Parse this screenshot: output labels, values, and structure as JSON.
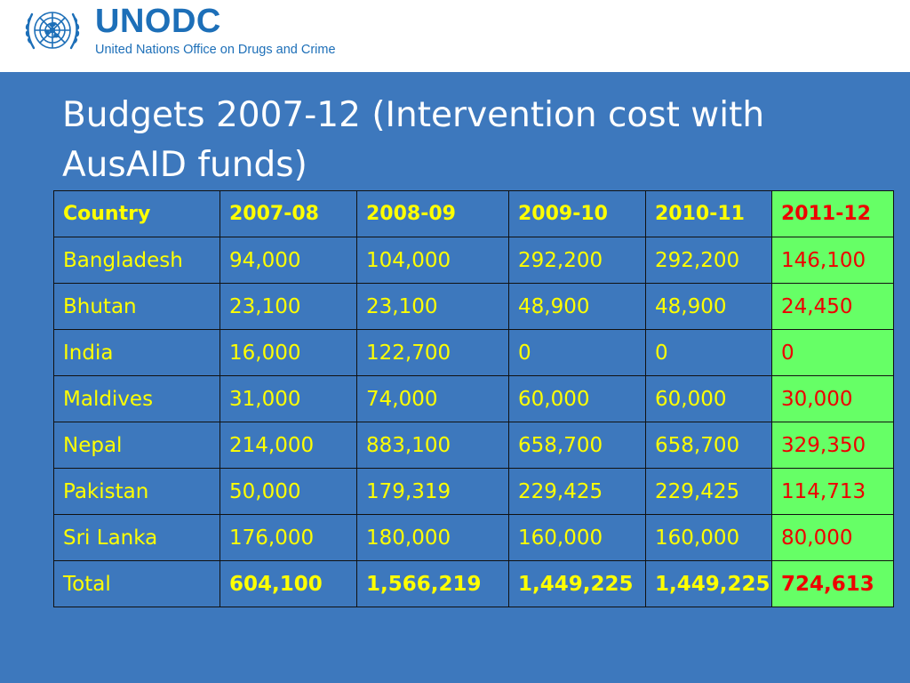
{
  "header": {
    "logo_word": "UNODC",
    "logo_sub": "United Nations Office on Drugs and Crime",
    "brand_color": "#1d6fb8"
  },
  "slide": {
    "title_line1": "Budgets 2007-12 (Intervention cost with",
    "title_line2": "AusAID funds)",
    "background": "#3d78bd",
    "highlight_bg": "#66ff66",
    "highlight_text": "#ee0000",
    "text_color": "#ffff00"
  },
  "table": {
    "columns": [
      "Country",
      "2007-08",
      "2008-09",
      "2009-10",
      "2010-11",
      "2011-12"
    ],
    "rows": [
      [
        "Bangladesh",
        "94,000",
        "104,000",
        "292,200",
        "292,200",
        "146,100"
      ],
      [
        "Bhutan",
        "23,100",
        "23,100",
        "48,900",
        "48,900",
        "24,450"
      ],
      [
        "India",
        "16,000",
        "122,700",
        "0",
        "0",
        "0"
      ],
      [
        "Maldives",
        "31,000",
        "74,000",
        "60,000",
        "60,000",
        "30,000"
      ],
      [
        "Nepal",
        "214,000",
        "883,100",
        "658,700",
        "658,700",
        "329,350"
      ],
      [
        "Pakistan",
        "50,000",
        "179,319",
        "229,425",
        "229,425",
        "114,713"
      ],
      [
        "Sri Lanka",
        "176,000",
        "180,000",
        "160,000",
        "160,000",
        "80,000"
      ],
      [
        "Total",
        "604,100",
        "1,566,219",
        "1,449,225",
        "1,449,225",
        "724,613"
      ]
    ]
  }
}
